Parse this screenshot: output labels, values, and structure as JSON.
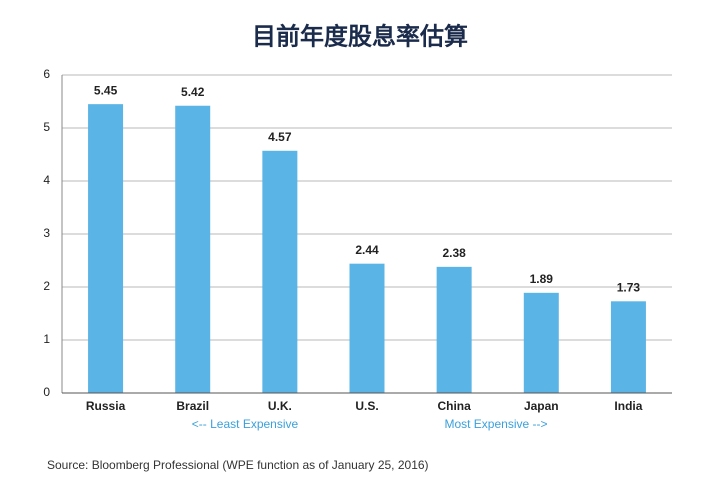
{
  "chart_data": {
    "type": "bar",
    "title": "目前年度股息率估算",
    "categories": [
      "Russia",
      "Brazil",
      "U.K.",
      "U.S.",
      "China",
      "Japan",
      "India"
    ],
    "values": [
      5.45,
      5.42,
      4.57,
      2.44,
      2.38,
      1.89,
      1.73
    ],
    "color": "#5ab4e5",
    "ylim": [
      0,
      6
    ],
    "yticks": [
      0,
      1,
      2,
      3,
      4,
      5,
      6
    ],
    "grid": true,
    "annotations": [
      "<-- Least Expensive",
      "Most Expensive -->"
    ],
    "source": "Source: Bloomberg Professional (WPE function as of January 25, 2016)"
  }
}
